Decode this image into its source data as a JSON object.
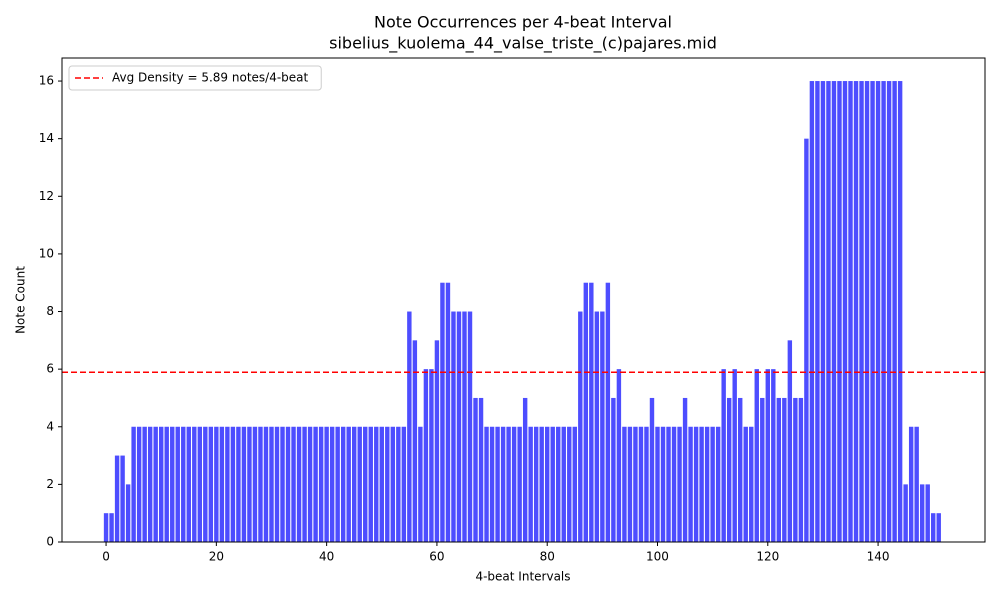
{
  "chart_data": {
    "type": "bar",
    "title": "Note Occurrences per 4-beat Interval",
    "subtitle": "sibelius_kuolema_44_valse_triste_(c)pajares.mid",
    "x_label": "4-beat Intervals",
    "y_label": "Note Count",
    "x": [
      0,
      1,
      2,
      3,
      4,
      5,
      6,
      7,
      8,
      9,
      10,
      11,
      12,
      13,
      14,
      15,
      16,
      17,
      18,
      19,
      20,
      21,
      22,
      23,
      24,
      25,
      26,
      27,
      28,
      29,
      30,
      31,
      32,
      33,
      34,
      35,
      36,
      37,
      38,
      39,
      40,
      41,
      42,
      43,
      44,
      45,
      46,
      47,
      48,
      49,
      50,
      51,
      52,
      53,
      54,
      55,
      56,
      57,
      58,
      59,
      60,
      61,
      62,
      63,
      64,
      65,
      66,
      67,
      68,
      69,
      70,
      71,
      72,
      73,
      74,
      75,
      76,
      77,
      78,
      79,
      80,
      81,
      82,
      83,
      84,
      85,
      86,
      87,
      88,
      89,
      90,
      91,
      92,
      93,
      94,
      95,
      96,
      97,
      98,
      99,
      100,
      101,
      102,
      103,
      104,
      105,
      106,
      107,
      108,
      109,
      110,
      111,
      112,
      113,
      114,
      115,
      116,
      117,
      118,
      119,
      120,
      121,
      122,
      123,
      124,
      125,
      126,
      127,
      128,
      129,
      130,
      131,
      132,
      133,
      134,
      135,
      136,
      137,
      138,
      139,
      140,
      141,
      142,
      143,
      144,
      145,
      146,
      147,
      148,
      149,
      150,
      151
    ],
    "values": [
      1,
      1,
      3,
      3,
      2,
      4,
      4,
      4,
      4,
      4,
      4,
      4,
      4,
      4,
      4,
      4,
      4,
      4,
      4,
      4,
      4,
      4,
      4,
      4,
      4,
      4,
      4,
      4,
      4,
      4,
      4,
      4,
      4,
      4,
      4,
      4,
      4,
      4,
      4,
      4,
      4,
      4,
      4,
      4,
      4,
      4,
      4,
      4,
      4,
      4,
      4,
      4,
      4,
      4,
      4,
      8,
      7,
      4,
      6,
      6,
      7,
      9,
      9,
      8,
      8,
      8,
      8,
      5,
      5,
      4,
      4,
      4,
      4,
      4,
      4,
      4,
      5,
      4,
      4,
      4,
      4,
      4,
      4,
      4,
      4,
      4,
      8,
      9,
      9,
      8,
      8,
      9,
      5,
      6,
      4,
      4,
      4,
      4,
      4,
      5,
      4,
      4,
      4,
      4,
      4,
      5,
      4,
      4,
      4,
      4,
      4,
      4,
      6,
      5,
      6,
      5,
      4,
      4,
      6,
      5,
      6,
      6,
      5,
      5,
      7,
      5,
      5,
      14,
      16,
      16,
      16,
      16,
      16,
      16,
      16,
      16,
      16,
      16,
      16,
      16,
      16,
      16,
      16,
      16,
      16,
      2,
      4,
      4,
      2,
      2,
      1,
      1
    ],
    "color": "#4d4dff",
    "hline": {
      "name": "Avg Density = 5.89 notes/4-beat",
      "value": 5.89,
      "color": "#ff0000"
    },
    "legend": "upper left",
    "xlim": [
      -7.99,
      159.39
    ],
    "xticks": [
      0,
      20,
      40,
      60,
      80,
      100,
      120,
      140
    ],
    "ylim": [
      0,
      16.8
    ],
    "yticks": [
      0,
      2,
      4,
      6,
      8,
      10,
      12,
      14,
      16
    ]
  }
}
